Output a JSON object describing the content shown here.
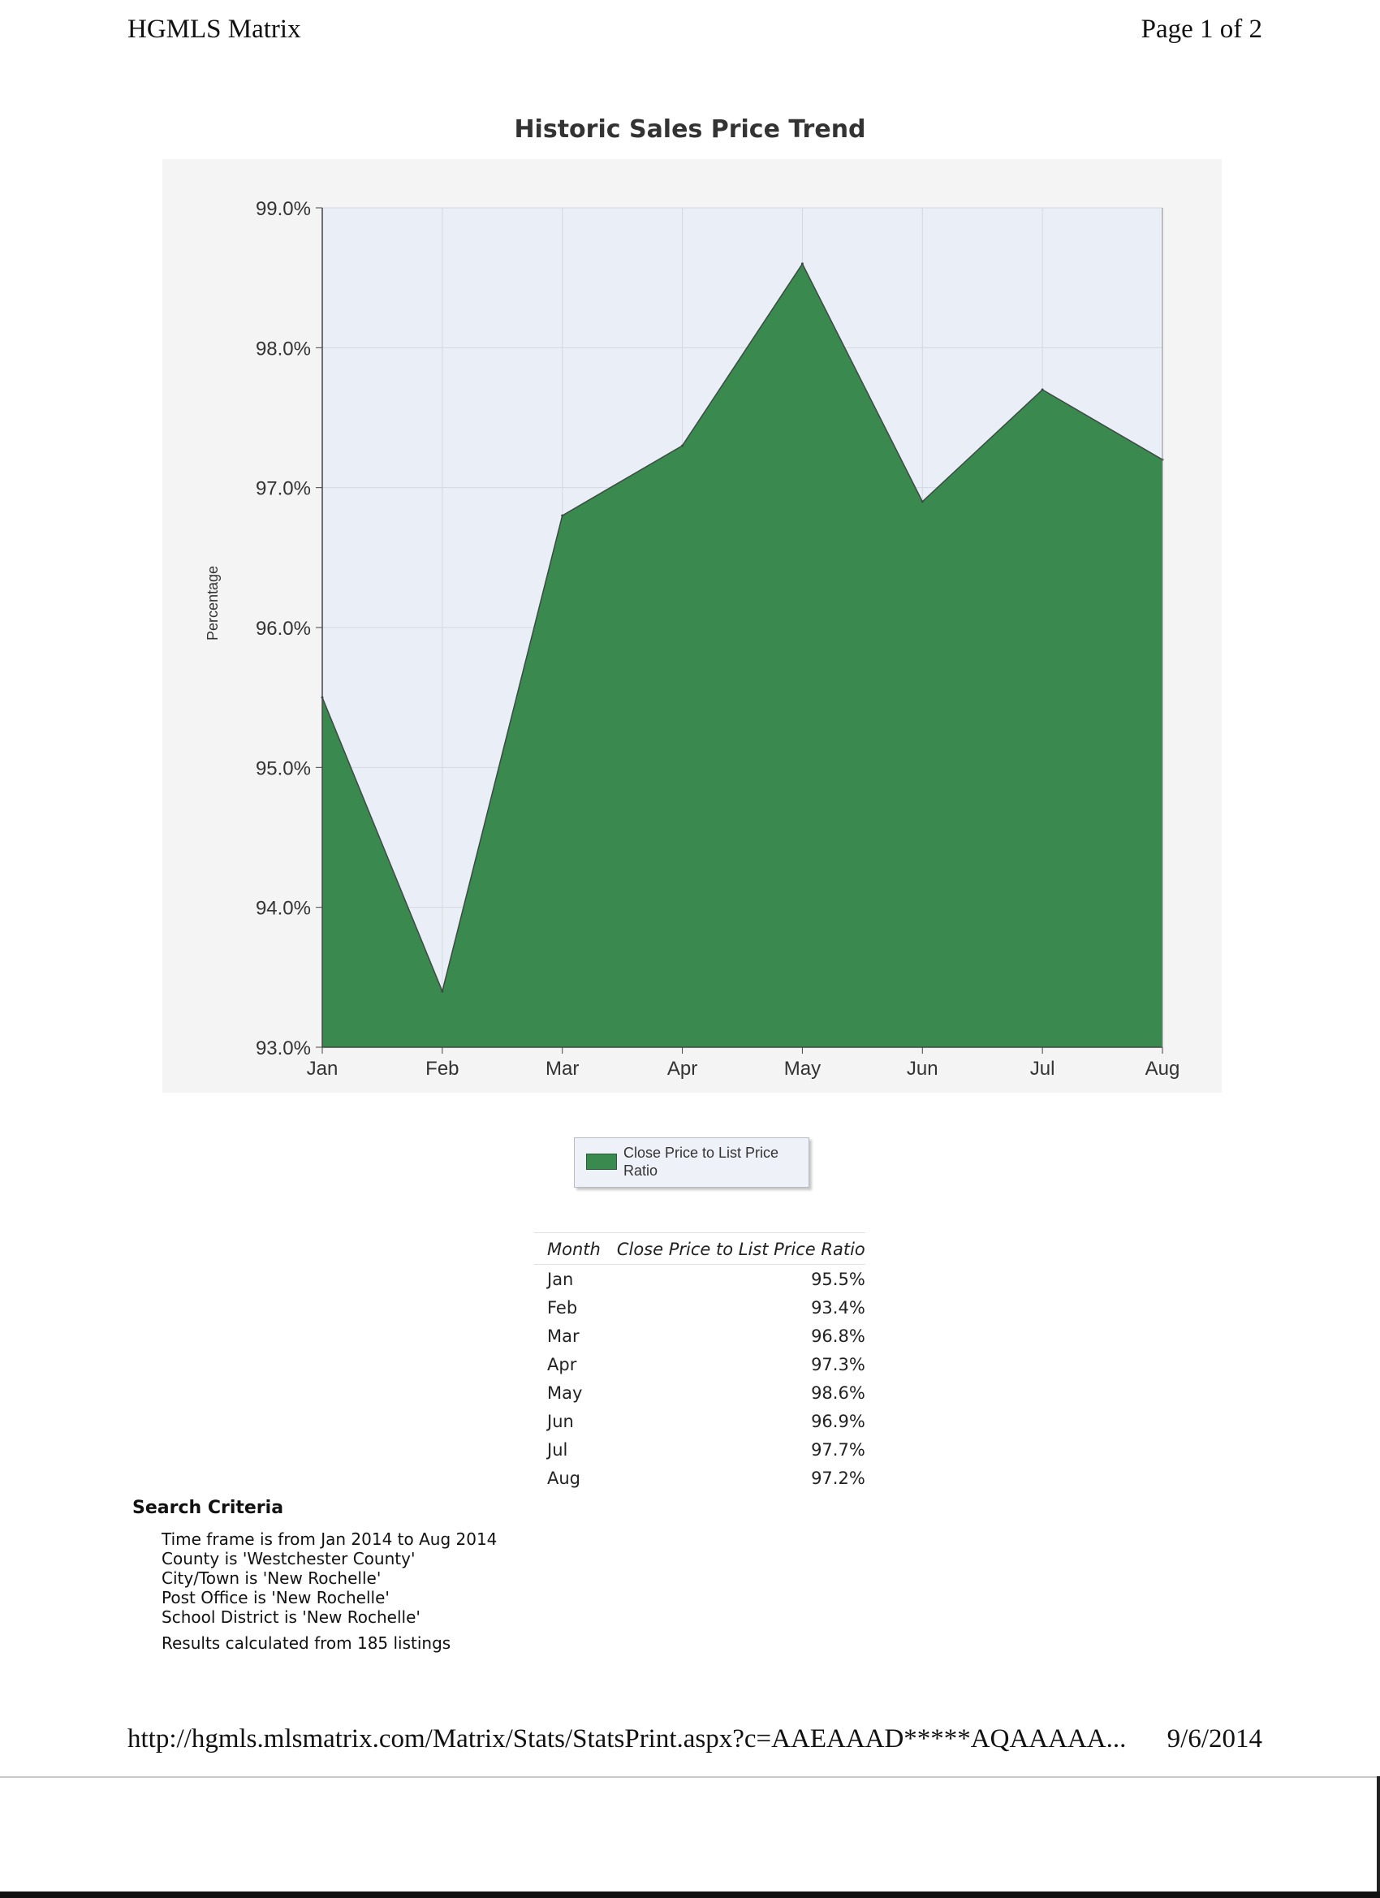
{
  "header": {
    "app_title": "HGMLS Matrix",
    "page_info": "Page 1 of 2"
  },
  "chart_data": {
    "type": "area",
    "title": "Historic Sales Price Trend",
    "xlabel": "",
    "ylabel": "Percentage",
    "categories": [
      "Jan",
      "Feb",
      "Mar",
      "Apr",
      "May",
      "Jun",
      "Jul",
      "Aug"
    ],
    "series": [
      {
        "name": "Close Price to List Price Ratio",
        "values": [
          95.5,
          93.4,
          96.8,
          97.3,
          98.6,
          96.9,
          97.7,
          97.2
        ],
        "color": "#3a8a4f"
      }
    ],
    "ylim": [
      93.0,
      99.0
    ],
    "yticks": [
      "93.0%",
      "94.0%",
      "95.0%",
      "96.0%",
      "97.0%",
      "98.0%",
      "99.0%"
    ],
    "grid": true,
    "legend_position": "bottom-center",
    "plot_background": "#e9eef7"
  },
  "legend": {
    "label": "Close Price to List Price Ratio"
  },
  "table": {
    "headers": [
      "Month",
      "Close Price to List Price Ratio"
    ],
    "rows": [
      [
        "Jan",
        "95.5%"
      ],
      [
        "Feb",
        "93.4%"
      ],
      [
        "Mar",
        "96.8%"
      ],
      [
        "Apr",
        "97.3%"
      ],
      [
        "May",
        "98.6%"
      ],
      [
        "Jun",
        "96.9%"
      ],
      [
        "Jul",
        "97.7%"
      ],
      [
        "Aug",
        "97.2%"
      ]
    ]
  },
  "criteria": {
    "title": "Search Criteria",
    "items": [
      "Time frame is from Jan 2014 to Aug 2014",
      "County is 'Westchester County'",
      "City/Town is 'New Rochelle'",
      "Post Office is 'New Rochelle'",
      "School District is 'New Rochelle'"
    ],
    "results": "Results calculated from 185 listings"
  },
  "footer": {
    "url": "http://hgmls.mlsmatrix.com/Matrix/Stats/StatsPrint.aspx?c=AAEAAAD*****AQAAAAA...",
    "date": "9/6/2014"
  }
}
